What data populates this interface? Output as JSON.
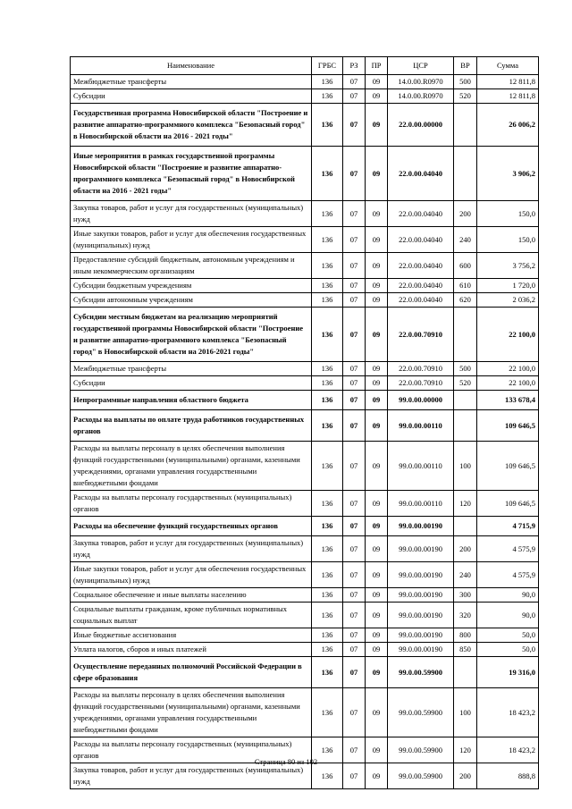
{
  "page": {
    "footer": "Страница 80 из 102"
  },
  "table": {
    "columns": [
      "Наименование",
      "ГРБС",
      "РЗ",
      "ПР",
      "ЦСР",
      "ВР",
      "Сумма"
    ],
    "rows": [
      {
        "name": "Межбюджетные трансферты",
        "grbs": "136",
        "rz": "07",
        "pr": "09",
        "csr": "14.0.00.R0970",
        "vr": "500",
        "sum": "12 811,8",
        "bold": false
      },
      {
        "name": "Субсидии",
        "grbs": "136",
        "rz": "07",
        "pr": "09",
        "csr": "14.0.00.R0970",
        "vr": "520",
        "sum": "12 811,8",
        "bold": false
      },
      {
        "name": "Государственная программа Новосибирской области \"Построение и развитие аппаратно-программного комплекса \"Безопасный город\" в Новосибирской области на 2016 - 2021 годы\"",
        "grbs": "136",
        "rz": "07",
        "pr": "09",
        "csr": "22.0.00.00000",
        "vr": "",
        "sum": "26 006,2",
        "bold": true
      },
      {
        "name": "Иные мероприятия в рамках государственной программы Новосибирской области \"Построение и развитие аппаратно-программного комплекса \"Безопасный город\" в Новосибирской области на 2016 - 2021 годы\"",
        "grbs": "136",
        "rz": "07",
        "pr": "09",
        "csr": "22.0.00.04040",
        "vr": "",
        "sum": "3 906,2",
        "bold": true
      },
      {
        "name": "Закупка товаров, работ и услуг для государственных (муниципальных) нужд",
        "grbs": "136",
        "rz": "07",
        "pr": "09",
        "csr": "22.0.00.04040",
        "vr": "200",
        "sum": "150,0",
        "bold": false
      },
      {
        "name": "Иные закупки товаров, работ и услуг для обеспечения государственных (муниципальных) нужд",
        "grbs": "136",
        "rz": "07",
        "pr": "09",
        "csr": "22.0.00.04040",
        "vr": "240",
        "sum": "150,0",
        "bold": false
      },
      {
        "name": "Предоставление субсидий  бюджетным, автономным учреждениям и иным некоммерческим организациям",
        "grbs": "136",
        "rz": "07",
        "pr": "09",
        "csr": "22.0.00.04040",
        "vr": "600",
        "sum": "3 756,2",
        "bold": false
      },
      {
        "name": "Субсидии бюджетным учреждениям",
        "grbs": "136",
        "rz": "07",
        "pr": "09",
        "csr": "22.0.00.04040",
        "vr": "610",
        "sum": "1 720,0",
        "bold": false
      },
      {
        "name": "Субсидии автономным учреждениям",
        "grbs": "136",
        "rz": "07",
        "pr": "09",
        "csr": "22.0.00.04040",
        "vr": "620",
        "sum": "2 036,2",
        "bold": false
      },
      {
        "name": "Субсидии местным бюджетам на реализацию мероприятий государственной программы Новосибирской области \"Построение и развитие аппаратно-программного комплекса \"Безопасный город\" в Новосибирской области на 2016-2021 годы\"",
        "grbs": "136",
        "rz": "07",
        "pr": "09",
        "csr": "22.0.00.70910",
        "vr": "",
        "sum": "22 100,0",
        "bold": true
      },
      {
        "name": "Межбюджетные трансферты",
        "grbs": "136",
        "rz": "07",
        "pr": "09",
        "csr": "22.0.00.70910",
        "vr": "500",
        "sum": "22 100,0",
        "bold": false
      },
      {
        "name": "Субсидии",
        "grbs": "136",
        "rz": "07",
        "pr": "09",
        "csr": "22.0.00.70910",
        "vr": "520",
        "sum": "22 100,0",
        "bold": false
      },
      {
        "name": "Непрограммные направления областного бюджета",
        "grbs": "136",
        "rz": "07",
        "pr": "09",
        "csr": "99.0.00.00000",
        "vr": "",
        "sum": "133 678,4",
        "bold": true
      },
      {
        "name": "Расходы на выплаты по оплате труда работников государственных органов",
        "grbs": "136",
        "rz": "07",
        "pr": "09",
        "csr": "99.0.00.00110",
        "vr": "",
        "sum": "109 646,5",
        "bold": true
      },
      {
        "name": "Расходы на выплаты персоналу в целях обеспечения выполнения функций государственными (муниципальными) органами, казенными учреждениями, органами управления государственными внебюджетными фондами",
        "grbs": "136",
        "rz": "07",
        "pr": "09",
        "csr": "99.0.00.00110",
        "vr": "100",
        "sum": "109 646,5",
        "bold": false
      },
      {
        "name": "Расходы на выплаты персоналу государственных (муниципальных) органов",
        "grbs": "136",
        "rz": "07",
        "pr": "09",
        "csr": "99.0.00.00110",
        "vr": "120",
        "sum": "109 646,5",
        "bold": false
      },
      {
        "name": "Расходы на обеспечение функций государственных органов",
        "grbs": "136",
        "rz": "07",
        "pr": "09",
        "csr": "99.0.00.00190",
        "vr": "",
        "sum": "4 715,9",
        "bold": true
      },
      {
        "name": "Закупка товаров, работ и услуг для государственных (муниципальных) нужд",
        "grbs": "136",
        "rz": "07",
        "pr": "09",
        "csr": "99.0.00.00190",
        "vr": "200",
        "sum": "4 575,9",
        "bold": false
      },
      {
        "name": "Иные закупки товаров, работ и услуг для обеспечения государственных (муниципальных) нужд",
        "grbs": "136",
        "rz": "07",
        "pr": "09",
        "csr": "99.0.00.00190",
        "vr": "240",
        "sum": "4 575,9",
        "bold": false
      },
      {
        "name": "Социальное обеспечение и иные выплаты населению",
        "grbs": "136",
        "rz": "07",
        "pr": "09",
        "csr": "99.0.00.00190",
        "vr": "300",
        "sum": "90,0",
        "bold": false
      },
      {
        "name": "Социальные выплаты гражданам, кроме публичных нормативных социальных выплат",
        "grbs": "136",
        "rz": "07",
        "pr": "09",
        "csr": "99.0.00.00190",
        "vr": "320",
        "sum": "90,0",
        "bold": false
      },
      {
        "name": "Иные бюджетные ассигнования",
        "grbs": "136",
        "rz": "07",
        "pr": "09",
        "csr": "99.0.00.00190",
        "vr": "800",
        "sum": "50,0",
        "bold": false
      },
      {
        "name": "Уплата налогов, сборов и иных платежей",
        "grbs": "136",
        "rz": "07",
        "pr": "09",
        "csr": "99.0.00.00190",
        "vr": "850",
        "sum": "50,0",
        "bold": false
      },
      {
        "name": "Осуществление переданных полномочий Российской Федерации в сфере образования",
        "grbs": "136",
        "rz": "07",
        "pr": "09",
        "csr": "99.0.00.59900",
        "vr": "",
        "sum": "19 316,0",
        "bold": true
      },
      {
        "name": "Расходы на выплаты персоналу в целях обеспечения выполнения функций государственными (муниципальными) органами, казенными учреждениями, органами управления государственными внебюджетными фондами",
        "grbs": "136",
        "rz": "07",
        "pr": "09",
        "csr": "99.0.00.59900",
        "vr": "100",
        "sum": "18 423,2",
        "bold": false
      },
      {
        "name": "Расходы на выплаты персоналу государственных (муниципальных) органов",
        "grbs": "136",
        "rz": "07",
        "pr": "09",
        "csr": "99.0.00.59900",
        "vr": "120",
        "sum": "18 423,2",
        "bold": false
      },
      {
        "name": "Закупка товаров, работ и услуг для государственных (муниципальных) нужд",
        "grbs": "136",
        "rz": "07",
        "pr": "09",
        "csr": "99.0.00.59900",
        "vr": "200",
        "sum": "888,8",
        "bold": false
      }
    ]
  }
}
